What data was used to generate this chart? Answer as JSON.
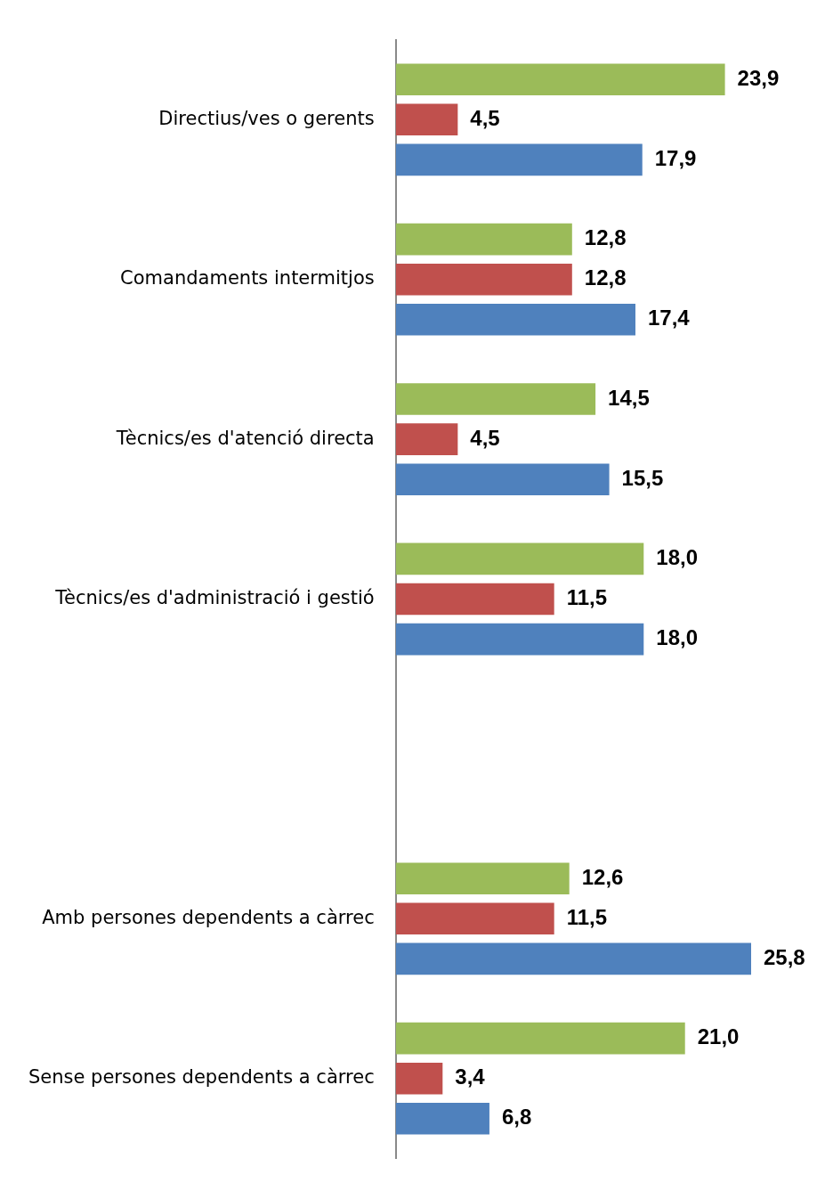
{
  "chart_data": {
    "type": "bar",
    "orientation": "horizontal",
    "categories": [
      "Directius/ves o gerents",
      "Comandaments intermitjos",
      "Tècnics/es d'atenció directa",
      "Tècnics/es d'administració i gestió",
      null,
      "Amb persones dependents a càrrec",
      "Sense persones dependents a càrrec"
    ],
    "series": [
      {
        "color": "#9bbb59",
        "values": [
          23.9,
          12.8,
          14.5,
          18.0,
          null,
          12.6,
          21.0
        ],
        "value_labels": [
          "23,9",
          "12,8",
          "14,5",
          "18,0",
          null,
          "12,6",
          "21,0"
        ]
      },
      {
        "color": "#c0504d",
        "values": [
          4.5,
          12.8,
          4.5,
          11.5,
          null,
          11.5,
          3.4
        ],
        "value_labels": [
          "4,5",
          "12,8",
          "4,5",
          "11,5",
          null,
          "11,5",
          "3,4"
        ]
      },
      {
        "color": "#4f81bd",
        "values": [
          17.9,
          17.4,
          15.5,
          18.0,
          null,
          25.8,
          6.8
        ],
        "value_labels": [
          "17,9",
          "17,4",
          "15,5",
          "18,0",
          null,
          "25,8",
          "6,8"
        ]
      }
    ],
    "legend": false,
    "grid": false,
    "tick_labels": "y"
  }
}
